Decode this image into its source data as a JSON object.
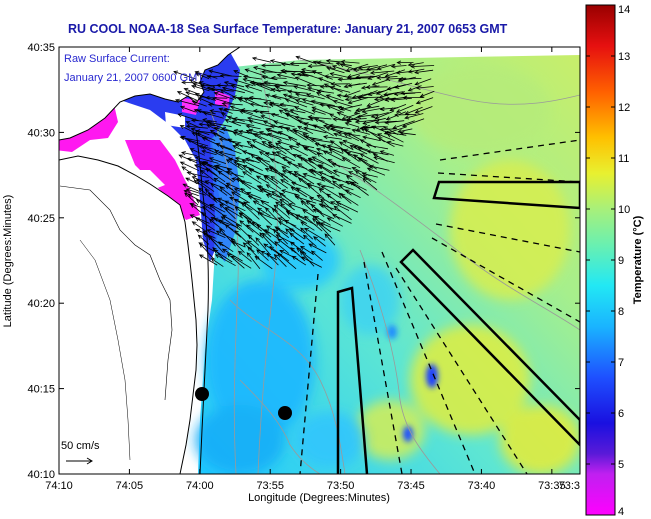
{
  "chart_data": {
    "type": "heatmap",
    "title": "RU COOL  NOAA-18  Sea Surface Temperature:  January 21, 2007 0653 GMT",
    "xlabel": "Longitude (Degrees:Minutes)",
    "ylabel": "Latitude (Degrees:Minutes)",
    "x_ticks": [
      "74:10",
      "74:05",
      "74:00",
      "73:55",
      "73:50",
      "73:45",
      "73:40",
      "73:35",
      "73:3"
    ],
    "y_ticks": [
      "40:35",
      "40:30",
      "40:25",
      "40:20",
      "40:15",
      "40:10"
    ],
    "xlim_minutes_west": [
      10,
      33
    ],
    "ylim_minutes_north": [
      10,
      35
    ],
    "colorbar": {
      "label": "Temperature (°C)",
      "ticks": [
        "4",
        "5",
        "6",
        "7",
        "8",
        "9",
        "10",
        "11",
        "12",
        "13",
        "14"
      ],
      "range": [
        4,
        14
      ]
    },
    "overlay_text": {
      "line1": "Raw Surface Current:",
      "line2": "January 21, 2007 0600 GMT"
    },
    "scale_label": "50 cm/s",
    "colors": {
      "title": "#1a1aa8",
      "overlay_text": "#2a2ad0",
      "land": "#ffffff",
      "vectors": "#000000"
    }
  }
}
